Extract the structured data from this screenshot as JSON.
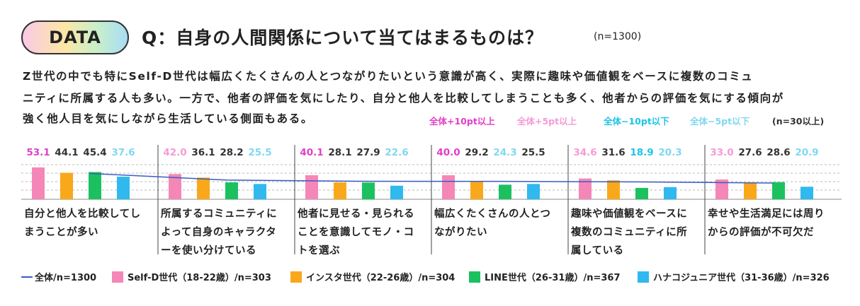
{
  "badge": "DATA",
  "title": "Q：自身の人間関係について当てはまるものは？",
  "sample_note": "(n=1300)",
  "paragraph": [
    "Z世代の中でも特にSelf-D世代は幅広くたくさんの人とつながりたいという意識が高く、実際に趣味や価値観をベースに複数のコミュ",
    "ニティに所属する人も多い。一方で、他者の評価を気にしたり、自分と他人を比較してしまうことも多く、他者からの評価を気にする傾向が",
    "強く他人目を気にしながら生活している側面もある。"
  ],
  "highlight_legend": [
    {
      "label": "全体+10pt以上",
      "color": "#e23ec8"
    },
    {
      "label": "全体+5pt以上",
      "color": "#f59ad8"
    },
    {
      "label": "全体−10pt以下",
      "color": "#1ec4e8"
    },
    {
      "label": "全体−5pt以下",
      "color": "#7fd8f0"
    }
  ],
  "highlight_note": "(n=30以上)",
  "chart_data": {
    "type": "bar",
    "categories": [
      "自分と他人を比較してしまうことが多い",
      "所属するコミュニティによって自身のキャラクターを使い分けている",
      "他者に見せる・見られることを意識してモノ・コトを選ぶ",
      "幅広くたくさんの人とつながりたい",
      "趣味や価値観をベースに複数のコミュニティに所属している",
      "幸せや生活満足には周りからの評価が不可欠だ"
    ],
    "ylim": [
      0,
      60
    ],
    "line": {
      "name": "全体/n=1300",
      "color": "#3b5bc4",
      "values": [
        43,
        32,
        30,
        29.8,
        29,
        27
      ]
    },
    "series": [
      {
        "name": "Self-D世代（18-22歳）/n=303",
        "color": "#f487b8",
        "values": [
          53.1,
          42,
          40.1,
          40,
          34.6,
          33
        ],
        "value_labels": [
          "53.1",
          "42.0",
          "40.1",
          "40.0",
          "34.6",
          "33.0"
        ],
        "label_colors": [
          "#e23ec8",
          "#f59ad8",
          "#e23ec8",
          "#e23ec8",
          "#f59ad8",
          "#f59ad8"
        ]
      },
      {
        "name": "インスタ世代（22-26歳）/n=304",
        "color": "#f9a81c",
        "values": [
          44.1,
          36.1,
          28.1,
          29.2,
          31.6,
          27.6
        ],
        "value_labels": [
          "44.1",
          "36.1",
          "28.1",
          "29.2",
          "31.6",
          "27.6"
        ],
        "label_colors": [
          "#333333",
          "#333333",
          "#333333",
          "#333333",
          "#333333",
          "#333333"
        ]
      },
      {
        "name": "LINE世代（26-31歳）/n=367",
        "color": "#1cc15f",
        "values": [
          45.4,
          28.2,
          27.9,
          24.3,
          18.9,
          28.6
        ],
        "value_labels": [
          "45.4",
          "28.2",
          "27.9",
          "24.3",
          "18.9",
          "28.6"
        ],
        "label_colors": [
          "#333333",
          "#333333",
          "#333333",
          "#7fd8f0",
          "#1ec4e8",
          "#333333"
        ]
      },
      {
        "name": "ハナコジュニア世代（31-36歳）/n=326",
        "color": "#2fb9ef",
        "values": [
          37.6,
          25.5,
          22.6,
          25.5,
          20.3,
          20.9
        ],
        "value_labels": [
          "37.6",
          "25.5",
          "22.6",
          "25.5",
          "20.3",
          "20.9"
        ],
        "label_colors": [
          "#7fd8f0",
          "#7fd8f0",
          "#7fd8f0",
          "#333333",
          "#7fd8f0",
          "#7fd8f0"
        ]
      }
    ]
  }
}
